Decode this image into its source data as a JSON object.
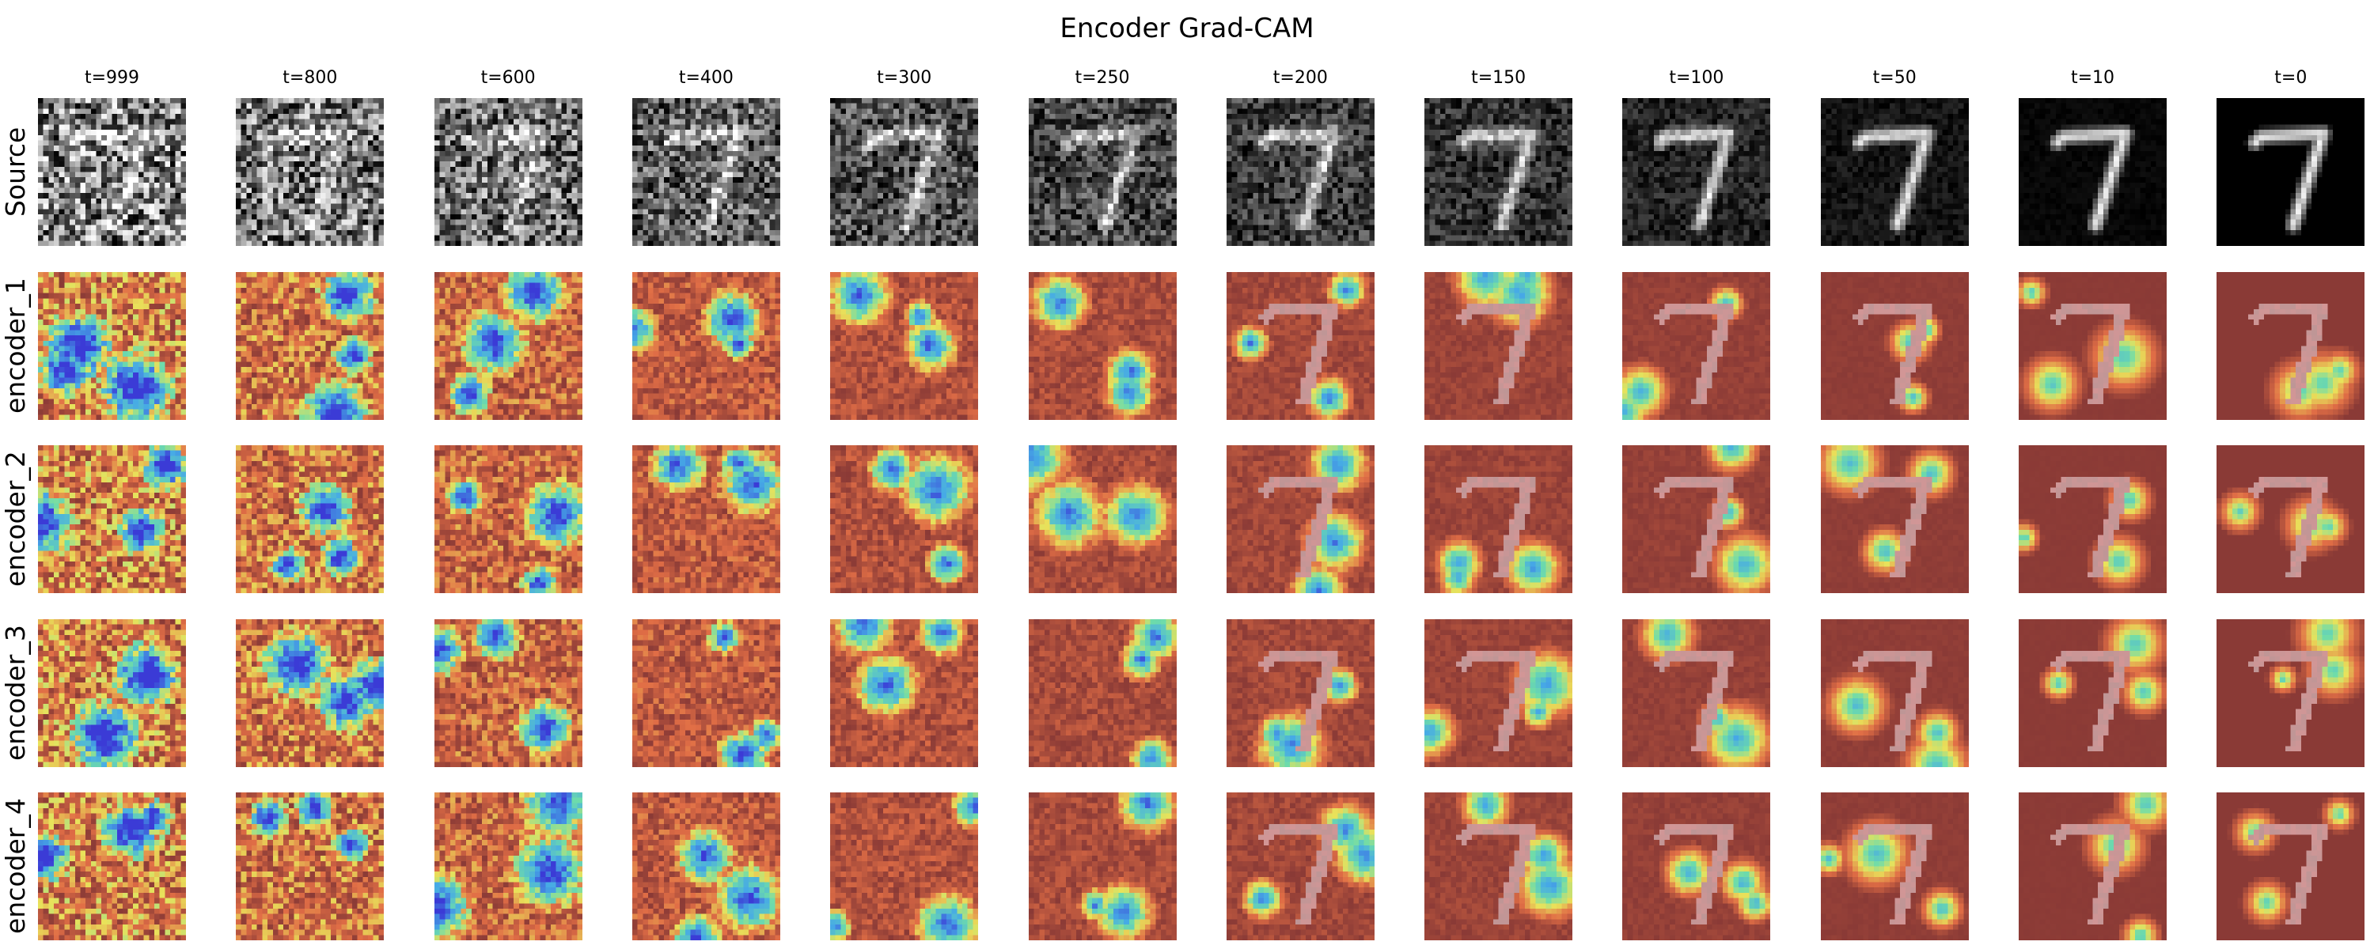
{
  "title": "Encoder Grad-CAM",
  "columns": [
    "t=999",
    "t=800",
    "t=600",
    "t=400",
    "t=300",
    "t=250",
    "t=200",
    "t=150",
    "t=100",
    "t=50",
    "t=10",
    "t=0"
  ],
  "rows": [
    {
      "label": "Source",
      "kind": "source"
    },
    {
      "label": "encoder_1",
      "kind": "cam"
    },
    {
      "label": "encoder_2",
      "kind": "cam"
    },
    {
      "label": "encoder_3",
      "kind": "cam"
    },
    {
      "label": "encoder_4",
      "kind": "cam"
    }
  ],
  "colors": {
    "background": "#ffffff",
    "cam_low": "#3b3bd6",
    "cam_mid": "#e9e25a",
    "cam_high": "#8a3a36"
  }
}
